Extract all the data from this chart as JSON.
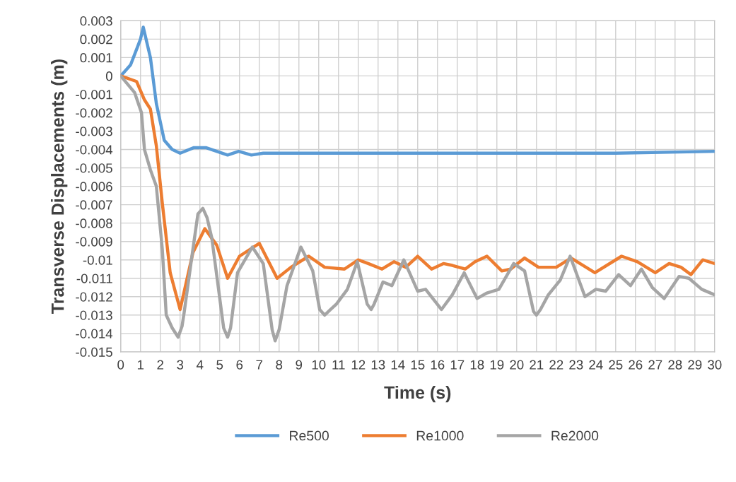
{
  "chart_data": {
    "type": "line",
    "xlabel": "Time (s)",
    "ylabel": "Transverse Displacements (m)",
    "xlim": [
      0,
      30
    ],
    "xticks": [
      0,
      1,
      2,
      3,
      4,
      5,
      6,
      7,
      8,
      9,
      10,
      11,
      12,
      13,
      14,
      15,
      16,
      17,
      18,
      19,
      20,
      21,
      22,
      23,
      24,
      25,
      26,
      27,
      28,
      29,
      30
    ],
    "ylim": [
      -0.015,
      0.003
    ],
    "yticks": [
      0.003,
      0.002,
      0.001,
      0,
      -0.001,
      -0.002,
      -0.003,
      -0.004,
      -0.005,
      -0.006,
      -0.007,
      -0.008,
      -0.009,
      -0.01,
      -0.011,
      -0.012,
      -0.013,
      -0.014,
      -0.015
    ],
    "grid": true,
    "legend": "bottom",
    "marker": "none",
    "line_style": "solid",
    "series": [
      {
        "name": "Re500",
        "color": "#5b9bd5",
        "x": [
          0,
          0.5,
          1.0,
          1.14,
          1.5,
          1.8,
          2.2,
          2.6,
          3.0,
          3.7,
          4.3,
          5.4,
          5.96,
          6.6,
          7.2,
          8,
          10,
          12,
          15,
          20,
          25,
          30
        ],
        "values": [
          0,
          0.0006,
          0.002,
          0.00265,
          0.001,
          -0.0015,
          -0.0035,
          -0.004,
          -0.0042,
          -0.0039,
          -0.0039,
          -0.0043,
          -0.0041,
          -0.0043,
          -0.0042,
          -0.0042,
          -0.0042,
          -0.0042,
          -0.0042,
          -0.0042,
          -0.0042,
          -0.0041
        ]
      },
      {
        "name": "Re1000",
        "color": "#ed7d31",
        "x": [
          0,
          0.8,
          1.2,
          1.5,
          1.8,
          2.1,
          2.5,
          3.0,
          3.65,
          4.25,
          4.85,
          5.4,
          6.0,
          7.0,
          7.9,
          8.6,
          9.5,
          10.3,
          11.3,
          12.0,
          12.5,
          13.2,
          13.8,
          14.4,
          15.0,
          15.7,
          16.3,
          16.75,
          17.4,
          17.9,
          18.5,
          19.25,
          19.7,
          20.4,
          21.1,
          22.0,
          22.75,
          23.95,
          25.3,
          26.1,
          27.0,
          27.7,
          28.3,
          28.8,
          29.4,
          30
        ],
        "values": [
          0,
          -0.0003,
          -0.0013,
          -0.0018,
          -0.0038,
          -0.0069,
          -0.0107,
          -0.0127,
          -0.0096,
          -0.0083,
          -0.0092,
          -0.011,
          -0.0098,
          -0.0091,
          -0.011,
          -0.0104,
          -0.0098,
          -0.0104,
          -0.0105,
          -0.01,
          -0.0102,
          -0.0105,
          -0.0101,
          -0.0104,
          -0.0098,
          -0.0105,
          -0.0102,
          -0.0103,
          -0.0105,
          -0.0101,
          -0.0098,
          -0.0106,
          -0.0105,
          -0.0099,
          -0.0104,
          -0.0104,
          -0.0099,
          -0.0107,
          -0.0098,
          -0.0101,
          -0.0107,
          -0.0102,
          -0.0104,
          -0.0108,
          -0.01,
          -0.0102
        ]
      },
      {
        "name": "Re2000",
        "color": "#a5a5a5",
        "x": [
          0,
          0.7,
          1.05,
          1.2,
          1.5,
          1.8,
          2.1,
          2.3,
          2.6,
          2.9,
          3.1,
          3.2,
          3.65,
          3.9,
          4.15,
          4.36,
          4.6,
          5.2,
          5.4,
          5.55,
          5.9,
          6.65,
          7.2,
          7.65,
          7.8,
          8.0,
          8.4,
          9.1,
          9.7,
          10.05,
          10.3,
          10.6,
          10.9,
          11.45,
          11.95,
          12.45,
          12.65,
          12.8,
          13.25,
          13.7,
          14.3,
          15.0,
          15.4,
          16.2,
          16.75,
          17.35,
          18.0,
          18.5,
          19.1,
          19.85,
          20.4,
          20.85,
          21.0,
          21.2,
          21.6,
          22.2,
          22.7,
          23.45,
          24.0,
          24.5,
          25.15,
          25.75,
          26.3,
          26.85,
          27.45,
          28.2,
          28.7,
          29.35,
          30
        ],
        "values": [
          0,
          -0.0009,
          -0.002,
          -0.004,
          -0.0051,
          -0.006,
          -0.0094,
          -0.013,
          -0.0137,
          -0.0142,
          -0.0136,
          -0.0129,
          -0.0094,
          -0.0075,
          -0.0072,
          -0.0077,
          -0.0088,
          -0.0137,
          -0.0142,
          -0.0137,
          -0.0107,
          -0.0093,
          -0.0102,
          -0.0138,
          -0.0144,
          -0.0138,
          -0.0114,
          -0.0093,
          -0.0106,
          -0.0127,
          -0.013,
          -0.0127,
          -0.0124,
          -0.0116,
          -0.0101,
          -0.0124,
          -0.0127,
          -0.0124,
          -0.0112,
          -0.0114,
          -0.01,
          -0.0117,
          -0.0116,
          -0.0127,
          -0.0119,
          -0.0107,
          -0.0121,
          -0.0118,
          -0.0116,
          -0.0102,
          -0.0106,
          -0.0128,
          -0.013,
          -0.0127,
          -0.0119,
          -0.0111,
          -0.0098,
          -0.012,
          -0.0116,
          -0.0117,
          -0.0108,
          -0.0114,
          -0.0105,
          -0.0115,
          -0.0121,
          -0.0109,
          -0.011,
          -0.0116,
          -0.0119
        ]
      }
    ]
  }
}
